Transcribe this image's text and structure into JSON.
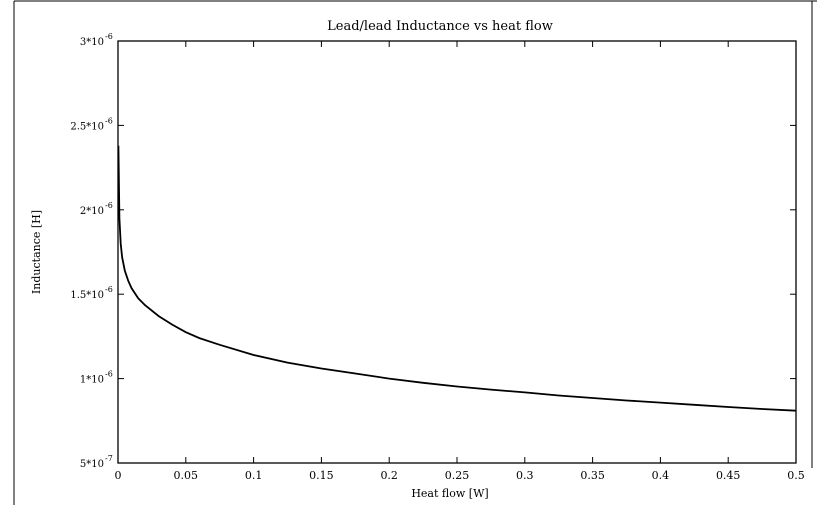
{
  "chart_data": {
    "type": "line",
    "title": "Lead/lead Inductance vs heat flow",
    "xlabel": "Heat flow [W]",
    "ylabel": "Inductance [H]",
    "xlim": [
      0,
      0.5
    ],
    "ylim": [
      5e-07,
      3e-06
    ],
    "grid": false,
    "legend": "none",
    "x_ticks": [
      {
        "value": 0,
        "label": "0"
      },
      {
        "value": 0.05,
        "label": "0.05"
      },
      {
        "value": 0.1,
        "label": "0.1"
      },
      {
        "value": 0.15,
        "label": "0.15"
      },
      {
        "value": 0.2,
        "label": "0.2"
      },
      {
        "value": 0.25,
        "label": "0.25"
      },
      {
        "value": 0.3,
        "label": "0.3"
      },
      {
        "value": 0.35,
        "label": "0.35"
      },
      {
        "value": 0.4,
        "label": "0.4"
      },
      {
        "value": 0.45,
        "label": "0.45"
      },
      {
        "value": 0.5,
        "label": "0.5"
      }
    ],
    "y_ticks": [
      {
        "value": 5e-07,
        "base": "5*10",
        "exp": "-7"
      },
      {
        "value": 1e-06,
        "base": "1*10",
        "exp": "-6"
      },
      {
        "value": 1.5e-06,
        "base": "1.5*10",
        "exp": "-6"
      },
      {
        "value": 2e-06,
        "base": "2*10",
        "exp": "-6"
      },
      {
        "value": 2.5e-06,
        "base": "2.5*10",
        "exp": "-6"
      },
      {
        "value": 3e-06,
        "base": "3*10",
        "exp": "-6"
      }
    ],
    "series": [
      {
        "color": "#000000",
        "x": [
          0.0003,
          0.001,
          0.002,
          0.003,
          0.005,
          0.0075,
          0.01,
          0.015,
          0.02,
          0.03,
          0.04,
          0.05,
          0.06,
          0.075,
          0.1,
          0.125,
          0.15,
          0.175,
          0.2,
          0.225,
          0.25,
          0.275,
          0.3,
          0.325,
          0.35,
          0.375,
          0.4,
          0.425,
          0.45,
          0.475,
          0.5
        ],
        "y": [
          2.38e-06,
          1.95e-06,
          1.8e-06,
          1.72e-06,
          1.64e-06,
          1.58e-06,
          1.535e-06,
          1.475e-06,
          1.435e-06,
          1.37e-06,
          1.32e-06,
          1.275e-06,
          1.24e-06,
          1.2e-06,
          1.14e-06,
          1.095e-06,
          1.06e-06,
          1.03e-06,
          1e-06,
          9.75e-07,
          9.53e-07,
          9.35e-07,
          9.18e-07,
          9e-07,
          8.85e-07,
          8.7e-07,
          8.58e-07,
          8.45e-07,
          8.32e-07,
          8.2e-07,
          8.1e-07
        ]
      }
    ]
  }
}
